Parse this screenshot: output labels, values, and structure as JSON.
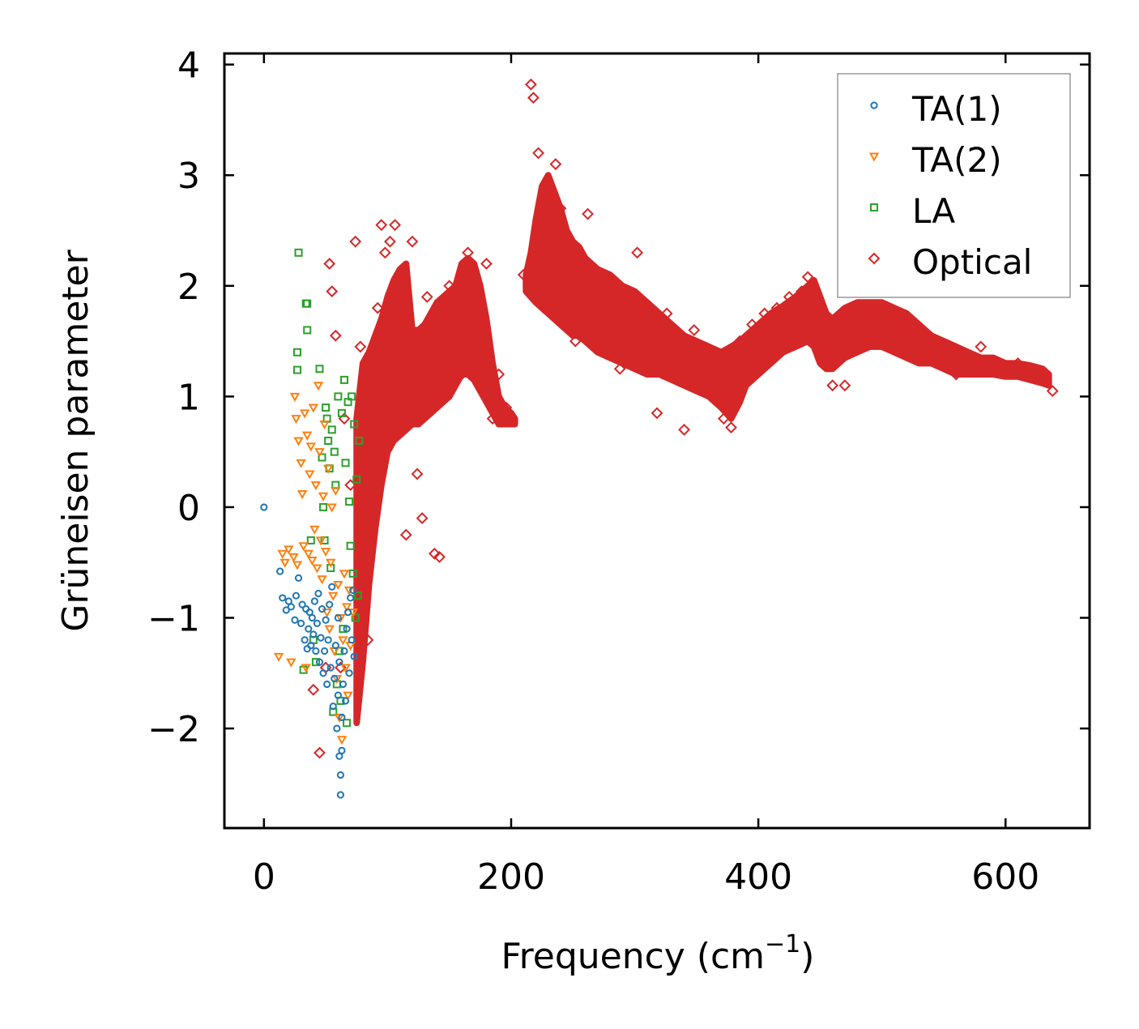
{
  "chart_data": {
    "type": "scatter",
    "title": "",
    "xlabel": "Frequency (cm",
    "xlabel_sup": "−1",
    "xlabel_close": ")",
    "ylabel": "Grüneisen parameter",
    "xlim": [
      -32,
      668
    ],
    "ylim": [
      -2.9,
      4.1
    ],
    "xticks": [
      0,
      200,
      400,
      600
    ],
    "xtick_labels": [
      "0",
      "200",
      "400",
      "600"
    ],
    "yticks": [
      -2,
      -1,
      0,
      1,
      2,
      3,
      4
    ],
    "ytick_labels": [
      "−2",
      "−1",
      "0",
      "1",
      "2",
      "3",
      "4"
    ],
    "legend_position": "top-right",
    "series": [
      {
        "name": "TA(1)",
        "marker": "circle",
        "color": "#1f77b4",
        "points": [
          [
            0,
            0.0
          ],
          [
            13,
            -0.58
          ],
          [
            15,
            -0.82
          ],
          [
            18,
            -0.93
          ],
          [
            20,
            -0.85
          ],
          [
            22,
            -0.9
          ],
          [
            25,
            -1.02
          ],
          [
            26,
            -0.8
          ],
          [
            28,
            -0.64
          ],
          [
            30,
            -1.05
          ],
          [
            31,
            -0.88
          ],
          [
            33,
            -1.2
          ],
          [
            34,
            -0.92
          ],
          [
            35,
            -1.28
          ],
          [
            36,
            -1.1
          ],
          [
            37,
            -0.95
          ],
          [
            38,
            -1.25
          ],
          [
            39,
            -1.0
          ],
          [
            40,
            -1.15
          ],
          [
            41,
            -0.85
          ],
          [
            42,
            -1.3
          ],
          [
            43,
            -1.05
          ],
          [
            44,
            -0.78
          ],
          [
            45,
            -1.4
          ],
          [
            46,
            -1.18
          ],
          [
            47,
            -0.92
          ],
          [
            48,
            -1.5
          ],
          [
            49,
            -1.3
          ],
          [
            50,
            -1.02
          ],
          [
            51,
            -1.6
          ],
          [
            52,
            -1.2
          ],
          [
            53,
            -0.88
          ],
          [
            54,
            -1.45
          ],
          [
            55,
            -0.72
          ],
          [
            56,
            -1.8
          ],
          [
            57,
            -1.55
          ],
          [
            58,
            -1.25
          ],
          [
            59,
            -2.0
          ],
          [
            60,
            -1.7
          ],
          [
            60,
            -1.0
          ],
          [
            61,
            -2.25
          ],
          [
            61,
            -1.4
          ],
          [
            62,
            -2.6
          ],
          [
            62,
            -2.42
          ],
          [
            63,
            -2.2
          ],
          [
            63,
            -1.9
          ],
          [
            64,
            -1.6
          ],
          [
            65,
            -1.3
          ],
          [
            66,
            -1.75
          ],
          [
            67,
            -1.1
          ],
          [
            68,
            -0.95
          ],
          [
            69,
            -1.5
          ],
          [
            70,
            -0.82
          ],
          [
            71,
            -1.2
          ],
          [
            72,
            -0.75
          ],
          [
            73,
            -1.35
          ]
        ]
      },
      {
        "name": "TA(2)",
        "marker": "triangle-down",
        "color": "#ff7f0e",
        "points": [
          [
            12,
            -1.35
          ],
          [
            15,
            -0.42
          ],
          [
            17,
            -0.5
          ],
          [
            20,
            -0.38
          ],
          [
            22,
            -1.4
          ],
          [
            24,
            -0.45
          ],
          [
            25,
            1.0
          ],
          [
            26,
            0.8
          ],
          [
            27,
            -0.52
          ],
          [
            28,
            0.6
          ],
          [
            30,
            0.4
          ],
          [
            31,
            0.12
          ],
          [
            32,
            -0.35
          ],
          [
            33,
            0.85
          ],
          [
            34,
            -1.45
          ],
          [
            35,
            0.65
          ],
          [
            36,
            -0.42
          ],
          [
            37,
            0.3
          ],
          [
            38,
            0.55
          ],
          [
            39,
            -0.48
          ],
          [
            40,
            0.9
          ],
          [
            41,
            -0.2
          ],
          [
            42,
            0.2
          ],
          [
            43,
            -0.55
          ],
          [
            44,
            1.1
          ],
          [
            45,
            0.5
          ],
          [
            46,
            -0.3
          ],
          [
            47,
            -0.65
          ],
          [
            48,
            0.1
          ],
          [
            49,
            0.75
          ],
          [
            50,
            -0.4
          ],
          [
            51,
            -0.95
          ],
          [
            52,
            0.35
          ],
          [
            53,
            -1.1
          ],
          [
            54,
            -0.5
          ],
          [
            55,
            0.0
          ],
          [
            56,
            -0.8
          ],
          [
            57,
            -1.3
          ],
          [
            58,
            0.15
          ],
          [
            59,
            -1.55
          ],
          [
            60,
            -0.7
          ],
          [
            61,
            -1.9
          ],
          [
            62,
            -1.0
          ],
          [
            63,
            -2.1
          ],
          [
            64,
            -1.2
          ],
          [
            65,
            -0.6
          ],
          [
            66,
            -1.45
          ],
          [
            67,
            -0.9
          ],
          [
            68,
            -1.7
          ],
          [
            69,
            -0.75
          ],
          [
            70,
            -1.25
          ],
          [
            72,
            -0.95
          ]
        ]
      },
      {
        "name": "LA",
        "marker": "square",
        "color": "#2ca02c",
        "points": [
          [
            28,
            2.3
          ],
          [
            27,
            1.4
          ],
          [
            27,
            1.24
          ],
          [
            34,
            1.84
          ],
          [
            35,
            1.84
          ],
          [
            35,
            1.6
          ],
          [
            32,
            -1.47
          ],
          [
            38,
            -0.3
          ],
          [
            40,
            -1.2
          ],
          [
            42,
            -1.4
          ],
          [
            45,
            1.25
          ],
          [
            47,
            0.45
          ],
          [
            48,
            0.0
          ],
          [
            49,
            -0.3
          ],
          [
            50,
            0.9
          ],
          [
            51,
            0.8
          ],
          [
            52,
            0.6
          ],
          [
            53,
            0.35
          ],
          [
            54,
            -0.55
          ],
          [
            55,
            0.7
          ],
          [
            56,
            -1.85
          ],
          [
            57,
            0.5
          ],
          [
            58,
            0.2
          ],
          [
            59,
            -1.6
          ],
          [
            60,
            1.0
          ],
          [
            61,
            -1.3
          ],
          [
            62,
            -1.75
          ],
          [
            63,
            0.85
          ],
          [
            64,
            -1.1
          ],
          [
            65,
            1.15
          ],
          [
            66,
            0.4
          ],
          [
            67,
            -1.95
          ],
          [
            68,
            0.95
          ],
          [
            69,
            0.05
          ],
          [
            70,
            -0.35
          ],
          [
            71,
            1.0
          ],
          [
            72,
            -0.6
          ],
          [
            73,
            0.75
          ],
          [
            74,
            -1.0
          ],
          [
            75,
            0.25
          ],
          [
            76,
            -0.8
          ],
          [
            77,
            0.6
          ]
        ]
      },
      {
        "name": "Optical",
        "marker": "diamond",
        "color": "#d62728",
        "points": [
          [
            40,
            -1.65
          ],
          [
            45,
            -2.22
          ],
          [
            50,
            -1.45
          ],
          [
            53,
            2.2
          ],
          [
            55,
            1.95
          ],
          [
            58,
            1.55
          ],
          [
            62,
            -1.45
          ],
          [
            65,
            0.8
          ],
          [
            70,
            0.2
          ],
          [
            74,
            2.4
          ],
          [
            78,
            1.45
          ],
          [
            80,
            -0.5
          ],
          [
            84,
            -1.2
          ],
          [
            88,
            0.6
          ],
          [
            92,
            1.8
          ],
          [
            95,
            2.55
          ],
          [
            98,
            2.3
          ],
          [
            102,
            2.4
          ],
          [
            106,
            2.55
          ],
          [
            110,
            0.9
          ],
          [
            115,
            -0.25
          ],
          [
            118,
            1.5
          ],
          [
            120,
            2.4
          ],
          [
            124,
            0.3
          ],
          [
            128,
            -0.1
          ],
          [
            132,
            1.9
          ],
          [
            136,
            1.7
          ],
          [
            138,
            -0.42
          ],
          [
            142,
            -0.45
          ],
          [
            146,
            1.1
          ],
          [
            150,
            2.0
          ],
          [
            154,
            1.55
          ],
          [
            160,
            1.2
          ],
          [
            165,
            2.3
          ],
          [
            170,
            1.85
          ],
          [
            175,
            1.4
          ],
          [
            180,
            2.2
          ],
          [
            185,
            0.8
          ],
          [
            190,
            1.2
          ],
          [
            196,
            0.9
          ],
          [
            200,
            0.82
          ],
          [
            210,
            2.1
          ],
          [
            216,
            3.82
          ],
          [
            218,
            3.7
          ],
          [
            222,
            3.2
          ],
          [
            226,
            2.5
          ],
          [
            230,
            1.8
          ],
          [
            236,
            3.1
          ],
          [
            240,
            2.7
          ],
          [
            246,
            2.4
          ],
          [
            252,
            1.5
          ],
          [
            258,
            2.1
          ],
          [
            262,
            2.65
          ],
          [
            268,
            1.75
          ],
          [
            275,
            2.0
          ],
          [
            282,
            1.6
          ],
          [
            288,
            1.25
          ],
          [
            295,
            1.9
          ],
          [
            302,
            2.3
          ],
          [
            310,
            1.3
          ],
          [
            318,
            0.85
          ],
          [
            326,
            1.75
          ],
          [
            334,
            1.2
          ],
          [
            340,
            0.7
          ],
          [
            348,
            1.6
          ],
          [
            355,
            1.3
          ],
          [
            365,
            1.0
          ],
          [
            372,
            0.8
          ],
          [
            378,
            0.72
          ],
          [
            385,
            1.5
          ],
          [
            395,
            1.65
          ],
          [
            405,
            1.75
          ],
          [
            415,
            1.8
          ],
          [
            425,
            1.9
          ],
          [
            435,
            1.95
          ],
          [
            440,
            2.08
          ],
          [
            445,
            1.6
          ],
          [
            452,
            1.3
          ],
          [
            460,
            1.1
          ],
          [
            470,
            1.1
          ],
          [
            480,
            1.5
          ],
          [
            490,
            1.75
          ],
          [
            500,
            1.8
          ],
          [
            510,
            1.75
          ],
          [
            520,
            1.65
          ],
          [
            530,
            1.5
          ],
          [
            540,
            1.35
          ],
          [
            550,
            1.3
          ],
          [
            560,
            1.2
          ],
          [
            570,
            1.3
          ],
          [
            580,
            1.45
          ],
          [
            590,
            1.3
          ],
          [
            600,
            1.25
          ],
          [
            610,
            1.3
          ],
          [
            620,
            1.25
          ],
          [
            630,
            1.15
          ],
          [
            638,
            1.05
          ]
        ]
      }
    ],
    "optical_band": {
      "x": [
        75,
        80,
        85,
        90,
        95,
        100,
        105,
        110,
        115,
        120,
        125,
        130,
        135,
        140,
        145,
        150,
        155,
        160,
        165,
        170,
        175,
        180,
        185,
        190,
        195,
        200,
        203,
        212,
        216,
        220,
        225,
        230,
        235,
        240,
        245,
        250,
        255,
        260,
        265,
        270,
        280,
        290,
        300,
        310,
        320,
        330,
        340,
        350,
        360,
        370,
        378,
        385,
        390,
        400,
        410,
        420,
        430,
        440,
        445,
        450,
        455,
        460,
        470,
        480,
        490,
        500,
        510,
        520,
        530,
        540,
        550,
        560,
        570,
        580,
        590,
        600,
        610,
        620,
        630,
        635
      ],
      "upper": [
        0.8,
        1.3,
        1.4,
        1.55,
        1.7,
        1.9,
        2.05,
        2.15,
        2.2,
        1.6,
        1.6,
        1.65,
        1.75,
        1.85,
        1.9,
        1.95,
        2.0,
        2.2,
        2.25,
        2.2,
        2.0,
        1.7,
        1.3,
        1.0,
        0.9,
        0.85,
        0.8,
        2.1,
        2.3,
        2.6,
        2.9,
        3.0,
        2.85,
        2.7,
        2.5,
        2.4,
        2.35,
        2.25,
        2.2,
        2.15,
        2.1,
        2.0,
        1.95,
        1.85,
        1.75,
        1.65,
        1.55,
        1.5,
        1.45,
        1.4,
        1.45,
        1.5,
        1.55,
        1.65,
        1.75,
        1.82,
        1.9,
        2.0,
        2.05,
        1.9,
        1.75,
        1.7,
        1.8,
        1.85,
        1.85,
        1.85,
        1.8,
        1.75,
        1.65,
        1.55,
        1.5,
        1.45,
        1.4,
        1.35,
        1.35,
        1.3,
        1.3,
        1.28,
        1.25,
        1.2
      ],
      "lower": [
        -1.95,
        -1.4,
        -0.7,
        -0.2,
        0.2,
        0.5,
        0.6,
        0.65,
        0.7,
        0.75,
        0.75,
        0.8,
        0.85,
        0.9,
        0.95,
        1.0,
        1.1,
        1.2,
        1.2,
        1.15,
        1.05,
        0.95,
        0.85,
        0.75,
        0.75,
        0.75,
        0.75,
        1.95,
        1.9,
        1.85,
        1.8,
        1.75,
        1.7,
        1.65,
        1.6,
        1.55,
        1.55,
        1.5,
        1.45,
        1.4,
        1.35,
        1.3,
        1.25,
        1.2,
        1.2,
        1.15,
        1.1,
        1.05,
        1.0,
        0.9,
        0.8,
        0.95,
        1.1,
        1.2,
        1.3,
        1.4,
        1.45,
        1.5,
        1.45,
        1.3,
        1.25,
        1.25,
        1.35,
        1.4,
        1.45,
        1.45,
        1.4,
        1.35,
        1.3,
        1.3,
        1.25,
        1.2,
        1.2,
        1.2,
        1.2,
        1.18,
        1.18,
        1.15,
        1.12,
        1.1
      ]
    }
  }
}
